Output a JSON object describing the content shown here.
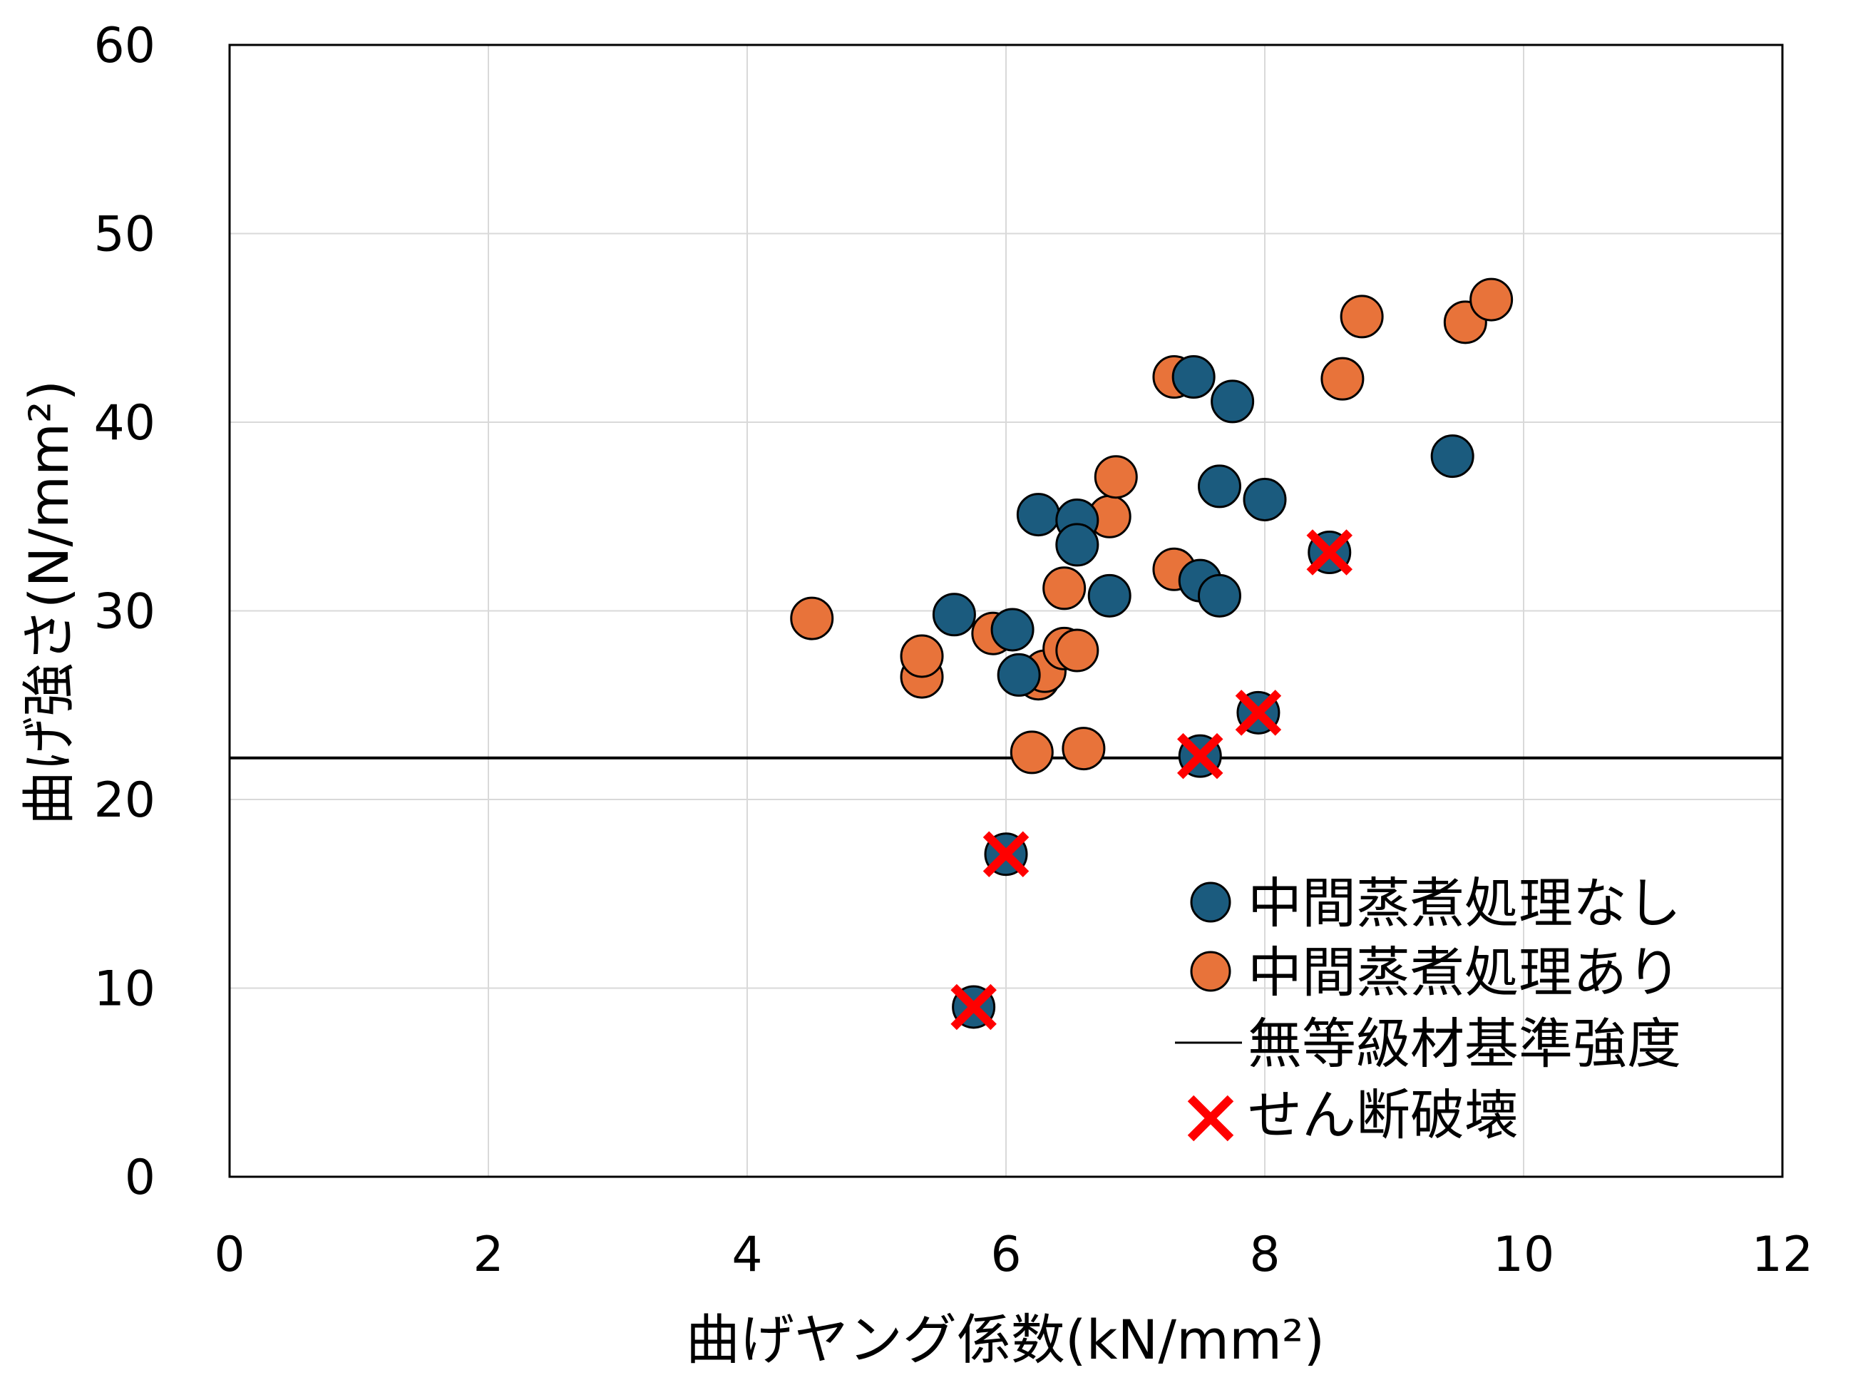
{
  "chart_data": {
    "type": "scatter",
    "title": "",
    "xlabel": "曲げヤング係数(kN/mm²)",
    "ylabel": "曲げ強さ(N/mm²)",
    "xlim": [
      0,
      12
    ],
    "ylim": [
      0,
      60
    ],
    "xticks": [
      "0",
      "2",
      "4",
      "6",
      "8",
      "10",
      "12"
    ],
    "yticks": [
      "0",
      "10",
      "20",
      "30",
      "40",
      "50",
      "60"
    ],
    "grid": true,
    "legend_position": "bottom-right",
    "series": [
      {
        "name": "中間蒸煮処理なし",
        "color": "#1b5b7e",
        "marker": "circle",
        "points": [
          [
            5.6,
            29.8
          ],
          [
            6.05,
            29.0
          ],
          [
            6.1,
            26.6
          ],
          [
            6.25,
            35.1
          ],
          [
            6.55,
            34.8
          ],
          [
            6.55,
            33.5
          ],
          [
            6.8,
            30.8
          ],
          [
            7.45,
            42.4
          ],
          [
            7.5,
            31.6
          ],
          [
            7.65,
            30.8
          ],
          [
            7.65,
            36.6
          ],
          [
            7.75,
            41.1
          ],
          [
            8.0,
            35.9
          ],
          [
            9.45,
            38.2
          ],
          [
            5.75,
            9.0
          ],
          [
            6.0,
            17.1
          ],
          [
            7.5,
            22.3
          ],
          [
            7.95,
            24.6
          ],
          [
            8.5,
            33.1
          ]
        ]
      },
      {
        "name": "中間蒸煮処理あり",
        "color": "#e8733a",
        "marker": "circle",
        "points": [
          [
            4.5,
            29.6
          ],
          [
            5.35,
            26.5
          ],
          [
            5.35,
            27.6
          ],
          [
            5.9,
            28.8
          ],
          [
            6.2,
            22.5
          ],
          [
            6.25,
            26.4
          ],
          [
            6.3,
            26.8
          ],
          [
            6.45,
            31.2
          ],
          [
            6.45,
            28.0
          ],
          [
            6.55,
            27.9
          ],
          [
            6.6,
            22.7
          ],
          [
            6.8,
            35.0
          ],
          [
            6.85,
            37.1
          ],
          [
            7.3,
            42.4
          ],
          [
            7.3,
            32.2
          ],
          [
            8.6,
            42.3
          ],
          [
            8.75,
            45.6
          ],
          [
            9.55,
            45.3
          ],
          [
            9.75,
            46.5
          ]
        ]
      }
    ],
    "reference_line": {
      "name": "無等級材基準強度",
      "y": 22.2,
      "color": "#000000"
    },
    "shear_failure": {
      "name": "せん断破壊",
      "color": "#ff0000",
      "marker": "x",
      "points": [
        [
          5.75,
          9.0
        ],
        [
          6.0,
          17.1
        ],
        [
          7.5,
          22.3
        ],
        [
          7.95,
          24.6
        ],
        [
          8.5,
          33.1
        ]
      ]
    }
  }
}
